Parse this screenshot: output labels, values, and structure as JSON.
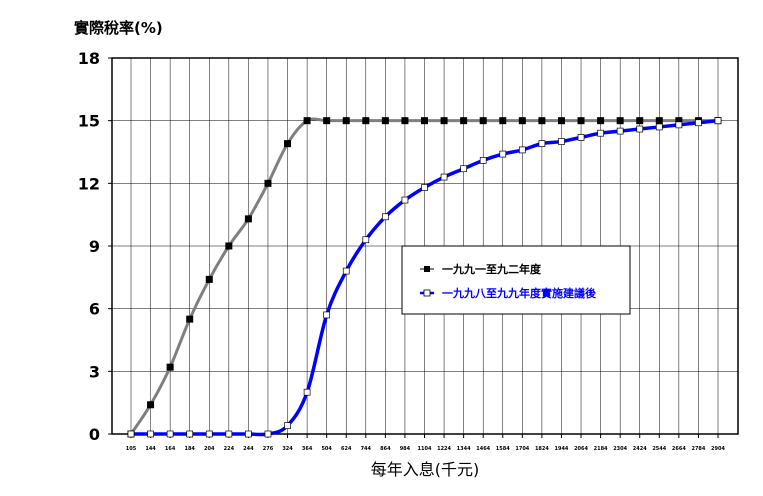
{
  "chart_data": {
    "type": "line",
    "ylabel": "實際稅率(%)",
    "xlabel": "每年入息(千元)",
    "ylim": [
      0,
      18
    ],
    "yticks": [
      "0",
      "3",
      "6",
      "9",
      "12",
      "15",
      "18"
    ],
    "grid": true,
    "legend_position": "center-right",
    "categories": [
      "105",
      "144",
      "164",
      "184",
      "204",
      "224",
      "244",
      "276",
      "324",
      "364",
      "504",
      "624",
      "744",
      "864",
      "984",
      "1104",
      "1224",
      "1344",
      "1464",
      "1584",
      "1704",
      "1824",
      "1944",
      "2064",
      "2184",
      "2304",
      "2424",
      "2544",
      "2664",
      "2784",
      "2904"
    ],
    "series": [
      {
        "name": "一九九一至九二年度",
        "color": "#7f7f7f",
        "marker": "square-filled",
        "values": [
          0,
          1.4,
          3.2,
          5.5,
          7.4,
          9.0,
          10.3,
          12.0,
          13.9,
          15,
          15,
          15,
          15,
          15,
          15,
          15,
          15,
          15,
          15,
          15,
          15,
          15,
          15,
          15,
          15,
          15,
          15,
          15,
          15,
          15,
          15
        ]
      },
      {
        "name": "一九九八至九九年度實施建議後",
        "color": "#0000ff",
        "marker": "square-open",
        "values": [
          0,
          0,
          0,
          0,
          0,
          0,
          0,
          0,
          0.4,
          2.0,
          5.7,
          7.8,
          9.3,
          10.4,
          11.2,
          11.8,
          12.3,
          12.7,
          13.1,
          13.4,
          13.6,
          13.9,
          14.0,
          14.2,
          14.4,
          14.5,
          14.6,
          14.7,
          14.8,
          14.9,
          15.0
        ]
      }
    ]
  }
}
